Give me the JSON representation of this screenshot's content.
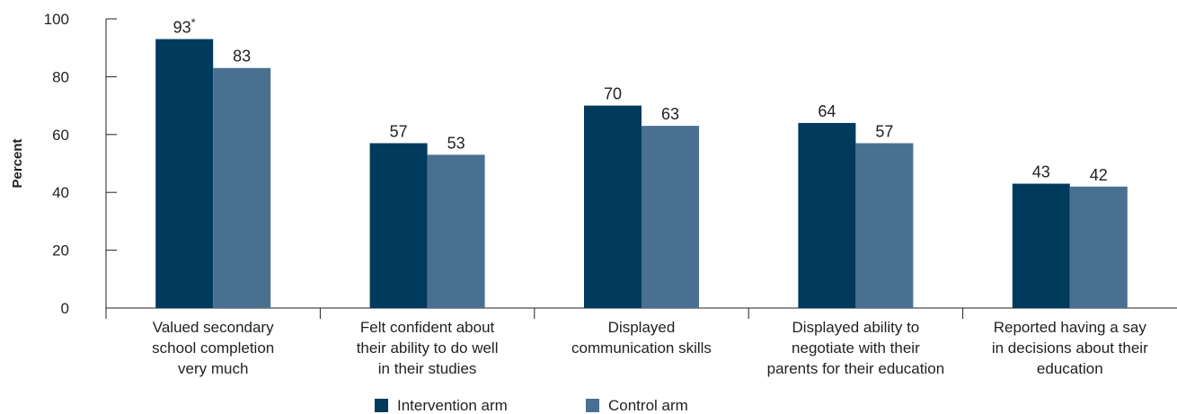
{
  "chart_data": {
    "type": "bar",
    "title": "",
    "xlabel": "",
    "ylabel": "Percent",
    "ylim": [
      0,
      100
    ],
    "yticks": [
      0,
      20,
      40,
      60,
      80,
      100
    ],
    "grid": false,
    "legend_position": "bottom",
    "categories": [
      [
        "Valued secondary",
        "school completion",
        "very much"
      ],
      [
        "Felt confident about",
        "their ability to do well",
        "in their studies"
      ],
      [
        "Displayed",
        "communication skills"
      ],
      [
        "Displayed ability to",
        "negotiate with their",
        "parents for their education"
      ],
      [
        "Reported having a say",
        "in decisions about their",
        "education"
      ]
    ],
    "series": [
      {
        "name": "Intervention arm",
        "color": "#003a5d",
        "values": [
          93,
          57,
          70,
          64,
          43
        ],
        "labels": [
          "93",
          "57",
          "70",
          "64",
          "43"
        ],
        "markers": [
          "*",
          "",
          "",
          "",
          ""
        ]
      },
      {
        "name": "Control arm",
        "color": "#4a7091",
        "values": [
          83,
          53,
          63,
          57,
          42
        ],
        "labels": [
          "83",
          "53",
          "63",
          "57",
          "42"
        ],
        "markers": [
          "",
          "",
          "",
          "",
          ""
        ]
      }
    ]
  }
}
